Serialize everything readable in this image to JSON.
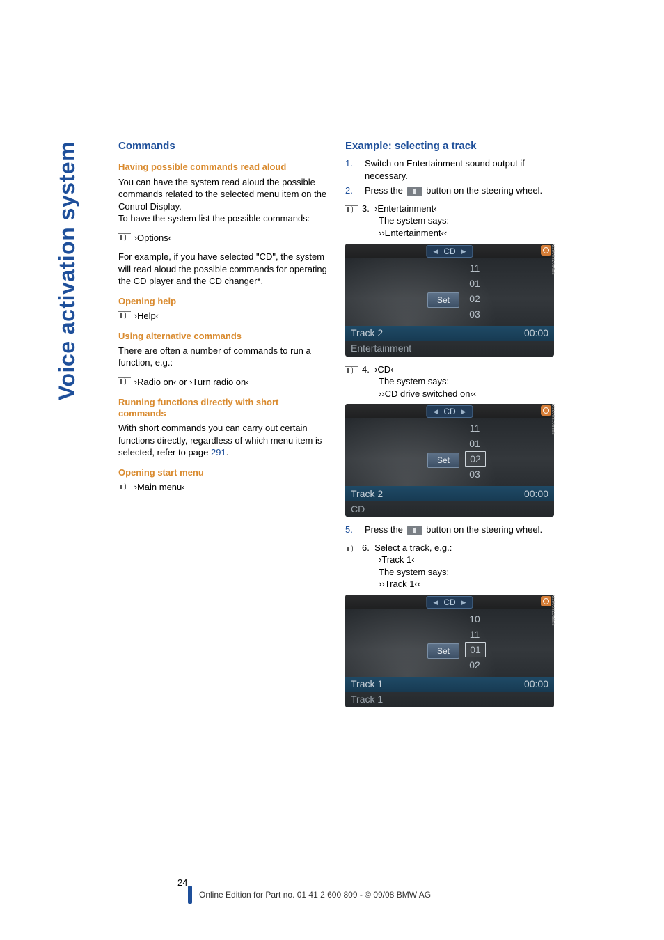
{
  "side_title": "Voice activation system",
  "left": {
    "h_commands": "Commands",
    "h_read_aloud": "Having possible commands read aloud",
    "read_body": "You can have the system read aloud the possible commands related to the selected menu item on the Control Display.\nTo have the system list the possible commands:",
    "options_cmd": "›Options‹",
    "options_followup": "For example, if you have selected \"CD\", the system will read aloud the possible commands for operating the CD player and the CD changer*.",
    "h_open_help": "Opening help",
    "help_cmd": "›Help‹",
    "h_alt": "Using alternative commands",
    "alt_body": "There are often a number of commands to run a function, e.g.:",
    "alt_cmd": "›Radio on‹ or ›Turn radio on‹",
    "h_short": "Running functions directly with short commands",
    "short_body_a": "With short commands you can carry out certain functions directly, regardless of which menu item is selected, refer to page ",
    "short_body_link": "291",
    "short_body_b": ".",
    "h_start_menu": "Opening start menu",
    "main_menu_cmd": "›Main menu‹"
  },
  "right": {
    "h_example": "Example: selecting a track",
    "step1": "Switch on Entertainment sound output if necessary.",
    "step2a": "Press the ",
    "step2b": " button on the steering wheel.",
    "step3_cmd": "›Entertainment‹",
    "step3_sys": "The system says:",
    "step3_say": "››Entertainment‹‹",
    "step4_cmd": "›CD‹",
    "step4_sys": "The system says:",
    "step4_say": "››CD drive switched on‹‹",
    "step5a": "Press the ",
    "step5b": " button on the steering wheel.",
    "step6_lead": "Select a track, e.g.:",
    "step6_cmd": "›Track 1‹",
    "step6_sys": "The system says:",
    "step6_say": "››Track 1‹‹"
  },
  "shots": {
    "s1": {
      "cd": "CD",
      "nums": [
        "11",
        "01",
        "02",
        "03"
      ],
      "boxed_index": -1,
      "set": "Set",
      "bar1_l": "Track 2",
      "bar1_r": "00:00",
      "bar2": "Entertainment",
      "gear_color": "#d57d37",
      "code": "M390081054E5"
    },
    "s2": {
      "cd": "CD",
      "nums": [
        "11",
        "01",
        "02",
        "03"
      ],
      "boxed_index": 2,
      "set": "Set",
      "bar1_l": "Track 2",
      "bar1_r": "00:00",
      "bar2": "CD",
      "gear_color": "#d57d37",
      "code": "M390081055E5"
    },
    "s3": {
      "cd": "CD",
      "nums": [
        "10",
        "11",
        "01",
        "02"
      ],
      "boxed_index": 2,
      "set": "Set",
      "bar1_l": "Track 1",
      "bar1_r": "00:00",
      "bar2": "Track 1",
      "gear_color": "#d57d37",
      "code": "M390081056E5"
    }
  },
  "page_number": "24",
  "footer": "Online Edition for Part no. 01 41 2 600 809 - © 09/08 BMW AG"
}
